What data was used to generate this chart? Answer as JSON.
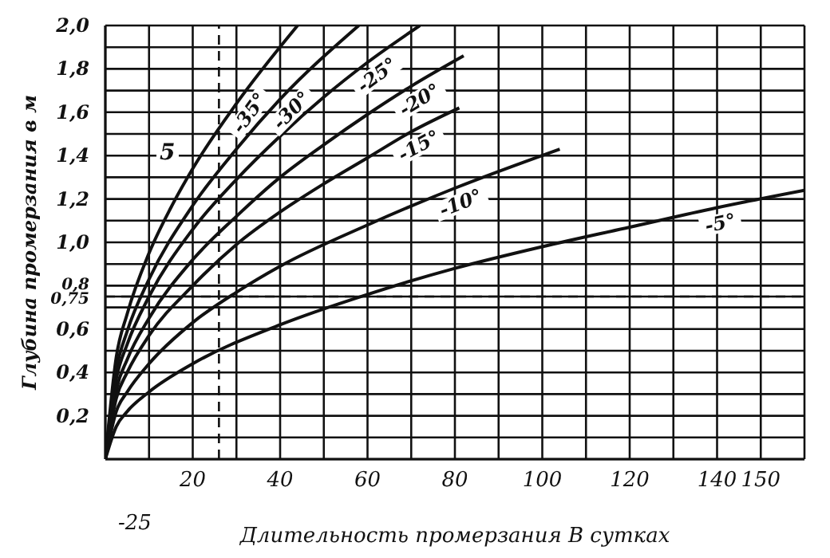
{
  "chart_data": {
    "type": "line",
    "xlabel": "Длительность промерзания В сутках",
    "ylabel": "Глубина промерзания в м",
    "xlim": [
      0,
      160
    ],
    "ylim": [
      0,
      2.0
    ],
    "xticks": [
      {
        "value": 10,
        "label": null
      },
      20,
      {
        "value": 30,
        "label": null
      },
      40,
      {
        "value": 50,
        "label": null
      },
      60,
      {
        "value": 70,
        "label": null
      },
      80,
      {
        "value": 90,
        "label": null
      },
      100,
      {
        "value": 110,
        "label": null
      },
      120,
      {
        "value": 130,
        "label": null
      },
      140,
      150,
      {
        "value": 160,
        "label": null
      }
    ],
    "yticks": [
      {
        "value": 0.1,
        "label": null
      },
      {
        "value": 0.2,
        "label": "0,2"
      },
      {
        "value": 0.3,
        "label": null
      },
      {
        "value": 0.4,
        "label": "0,4"
      },
      {
        "value": 0.5,
        "label": null
      },
      {
        "value": 0.6,
        "label": "0,6"
      },
      {
        "value": 0.7,
        "label": null
      },
      {
        "value": 0.75,
        "label": "0,75"
      },
      {
        "value": 0.8,
        "label": "0,8"
      },
      {
        "value": 0.9,
        "label": null
      },
      {
        "value": 1.0,
        "label": "1,0"
      },
      {
        "value": 1.1,
        "label": null
      },
      {
        "value": 1.2,
        "label": "1,2"
      },
      {
        "value": 1.3,
        "label": null
      },
      {
        "value": 1.4,
        "label": "1,4"
      },
      {
        "value": 1.5,
        "label": null
      },
      {
        "value": 1.6,
        "label": "1,6"
      },
      {
        "value": 1.7,
        "label": null
      },
      {
        "value": 1.8,
        "label": "1,8"
      },
      {
        "value": 1.9,
        "label": null
      },
      {
        "value": 2.0,
        "label": "2,0"
      }
    ],
    "grid": true,
    "marker": "none",
    "line_style": "solid",
    "series": [
      {
        "name": "-35°",
        "color": "#111111",
        "x": [
          0,
          2.5,
          5,
          10,
          15,
          20,
          30,
          44
        ],
        "values": [
          0,
          0.47,
          0.67,
          0.95,
          1.16,
          1.34,
          1.64,
          2.0
        ]
      },
      {
        "name": "-30°",
        "color": "#111111",
        "x": [
          0,
          2.5,
          5,
          10,
          20,
          30,
          40,
          58
        ],
        "values": [
          0,
          0.41,
          0.59,
          0.83,
          1.17,
          1.43,
          1.66,
          2.0
        ]
      },
      {
        "name": "-25°",
        "color": "#111111",
        "x": [
          0,
          2.5,
          5,
          10,
          20,
          30,
          40,
          50,
          60,
          72
        ],
        "values": [
          0,
          0.37,
          0.53,
          0.75,
          1.06,
          1.29,
          1.49,
          1.67,
          1.83,
          2.0
        ]
      },
      {
        "name": "-20°",
        "color": "#111111",
        "x": [
          0,
          2.5,
          5,
          10,
          20,
          30,
          40,
          50,
          60,
          70,
          82
        ],
        "values": [
          0,
          0.32,
          0.46,
          0.65,
          0.92,
          1.12,
          1.3,
          1.45,
          1.59,
          1.72,
          1.86
        ]
      },
      {
        "name": "-15°",
        "color": "#111111",
        "x": [
          0,
          2.5,
          5,
          10,
          20,
          30,
          40,
          50,
          60,
          70,
          81
        ],
        "values": [
          0,
          0.28,
          0.4,
          0.57,
          0.8,
          0.99,
          1.14,
          1.27,
          1.39,
          1.51,
          1.62
        ]
      },
      {
        "name": "-10°",
        "color": "#111111",
        "x": [
          0,
          2.5,
          5,
          10,
          20,
          30,
          40,
          60,
          80,
          104
        ],
        "values": [
          0,
          0.22,
          0.31,
          0.44,
          0.63,
          0.77,
          0.89,
          1.08,
          1.25,
          1.43
        ]
      },
      {
        "name": "-5°",
        "color": "#111111",
        "x": [
          0,
          2.5,
          5,
          10,
          20,
          40,
          60,
          80,
          100,
          120,
          140,
          160
        ],
        "values": [
          0,
          0.15,
          0.22,
          0.31,
          0.44,
          0.62,
          0.76,
          0.88,
          0.98,
          1.07,
          1.16,
          1.24
        ]
      }
    ],
    "ref_lines": [
      {
        "axis": "y",
        "value": 0.75,
        "label": null,
        "line_style": "dashed"
      },
      {
        "axis": "x",
        "value": 26,
        "label": null,
        "line_style": "dashed"
      }
    ],
    "annotations": [
      "5",
      "-25"
    ]
  }
}
